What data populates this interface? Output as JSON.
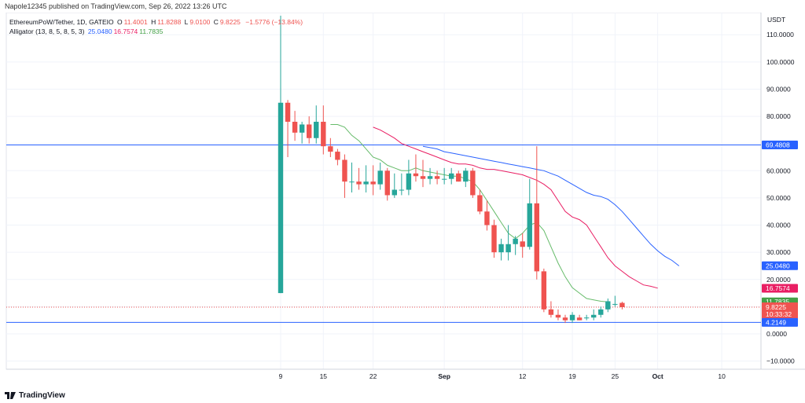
{
  "header": {
    "published_text": "Napole12345 published on TradingView.com, Sep 26, 2022 13:26 UTC"
  },
  "legend": {
    "symbol": "EthereumPoW/Tether, 1D, GATEIO",
    "ohlc": [
      {
        "k": "O",
        "v": "11.4001"
      },
      {
        "k": "H",
        "v": "11.8288"
      },
      {
        "k": "L",
        "v": "9.0100"
      },
      {
        "k": "C",
        "v": "9.8225"
      }
    ],
    "change": "−1.5776 (−13.84%)",
    "alligator_label": "Alligator (13, 8, 5, 8, 5, 3)",
    "alligator_values": [
      {
        "v": "25.0480",
        "color": "#2962ff"
      },
      {
        "v": "16.7574",
        "color": "#e91e63"
      },
      {
        "v": "11.7835",
        "color": "#43a047"
      }
    ]
  },
  "footer": {
    "brand": "TradingView"
  },
  "colors": {
    "up": "#26a69a",
    "down": "#ef5350",
    "jaw": "#2962ff",
    "teeth": "#e91e63",
    "lips": "#66bb6a",
    "hline": "#2962ff",
    "grid": "#f0f3fa"
  },
  "chart_data": {
    "type": "candlestick",
    "currency": "USDT",
    "ylim": [
      -13,
      117
    ],
    "y_ticks": [
      "110.0000",
      "100.0000",
      "90.0000",
      "80.0000",
      "70.0000",
      "60.0000",
      "50.0000",
      "40.0000",
      "30.0000",
      "20.0000",
      "10.0000",
      "0.0000",
      "−10.0000"
    ],
    "x_ticks": [
      {
        "label": "9",
        "i": 0
      },
      {
        "label": "15",
        "i": 6
      },
      {
        "label": "22",
        "i": 13
      },
      {
        "label": "Sep",
        "i": 23,
        "bold": true
      },
      {
        "label": "12",
        "i": 34
      },
      {
        "label": "19",
        "i": 41
      },
      {
        "label": "25",
        "i": 47
      },
      {
        "label": "Oct",
        "i": 53,
        "bold": true
      },
      {
        "label": "10",
        "i": 62
      }
    ],
    "candles": [
      {
        "o": 15,
        "h": 117,
        "l": 15,
        "c": 85
      },
      {
        "o": 85,
        "h": 86,
        "l": 65,
        "c": 78
      },
      {
        "o": 78,
        "h": 82,
        "l": 71,
        "c": 74
      },
      {
        "o": 74,
        "h": 78,
        "l": 70,
        "c": 77
      },
      {
        "o": 77,
        "h": 80,
        "l": 70,
        "c": 72
      },
      {
        "o": 72,
        "h": 84,
        "l": 70,
        "c": 78
      },
      {
        "o": 78,
        "h": 84,
        "l": 66,
        "c": 69
      },
      {
        "o": 69,
        "h": 72,
        "l": 65,
        "c": 67
      },
      {
        "o": 67,
        "h": 68,
        "l": 62,
        "c": 64
      },
      {
        "o": 64,
        "h": 66,
        "l": 50,
        "c": 56
      },
      {
        "o": 56,
        "h": 63,
        "l": 52,
        "c": 56
      },
      {
        "o": 56,
        "h": 61,
        "l": 53,
        "c": 55
      },
      {
        "o": 55,
        "h": 62,
        "l": 52,
        "c": 56
      },
      {
        "o": 56,
        "h": 62,
        "l": 51,
        "c": 55
      },
      {
        "o": 55,
        "h": 63,
        "l": 53,
        "c": 60
      },
      {
        "o": 60,
        "h": 61,
        "l": 49,
        "c": 51
      },
      {
        "o": 51,
        "h": 59,
        "l": 50,
        "c": 53
      },
      {
        "o": 53,
        "h": 59,
        "l": 51,
        "c": 53
      },
      {
        "o": 53,
        "h": 64,
        "l": 51,
        "c": 59
      },
      {
        "o": 59,
        "h": 66,
        "l": 56,
        "c": 58
      },
      {
        "o": 58,
        "h": 64,
        "l": 54,
        "c": 57
      },
      {
        "o": 57,
        "h": 61,
        "l": 55,
        "c": 58
      },
      {
        "o": 58,
        "h": 60,
        "l": 55,
        "c": 57
      },
      {
        "o": 57,
        "h": 61,
        "l": 55,
        "c": 57
      },
      {
        "o": 57,
        "h": 61,
        "l": 55,
        "c": 59
      },
      {
        "o": 59,
        "h": 60,
        "l": 56,
        "c": 56
      },
      {
        "o": 56,
        "h": 61,
        "l": 54,
        "c": 60
      },
      {
        "o": 60,
        "h": 61,
        "l": 50,
        "c": 51
      },
      {
        "o": 51,
        "h": 53,
        "l": 44,
        "c": 45
      },
      {
        "o": 45,
        "h": 49,
        "l": 38,
        "c": 40
      },
      {
        "o": 40,
        "h": 42,
        "l": 28,
        "c": 30
      },
      {
        "o": 30,
        "h": 35,
        "l": 27,
        "c": 33
      },
      {
        "o": 30,
        "h": 40,
        "l": 27,
        "c": 33
      },
      {
        "o": 33,
        "h": 36,
        "l": 29,
        "c": 35
      },
      {
        "o": 34,
        "h": 37,
        "l": 28,
        "c": 32
      },
      {
        "o": 32,
        "h": 57,
        "l": 31,
        "c": 48
      },
      {
        "o": 48,
        "h": 69,
        "l": 20,
        "c": 23
      },
      {
        "o": 23,
        "h": 24,
        "l": 8,
        "c": 9
      },
      {
        "o": 9,
        "h": 12,
        "l": 6,
        "c": 7
      },
      {
        "o": 7,
        "h": 9,
        "l": 5,
        "c": 6
      },
      {
        "o": 6,
        "h": 7,
        "l": 4,
        "c": 5
      },
      {
        "o": 5,
        "h": 8,
        "l": 4,
        "c": 7
      },
      {
        "o": 6,
        "h": 7,
        "l": 5,
        "c": 5
      },
      {
        "o": 6,
        "h": 7,
        "l": 5,
        "c": 6
      },
      {
        "o": 6,
        "h": 9,
        "l": 5,
        "c": 7
      },
      {
        "o": 7,
        "h": 10,
        "l": 6,
        "c": 9
      },
      {
        "o": 9,
        "h": 13,
        "l": 8,
        "c": 12
      },
      {
        "o": 11,
        "h": 14,
        "l": 10,
        "c": 11
      },
      {
        "o": 11.4,
        "h": 11.83,
        "l": 9.01,
        "c": 9.82
      }
    ],
    "alligator": {
      "jaw": {
        "name": "25.0480",
        "start_i": 20,
        "values": [
          69,
          68.5,
          68,
          67,
          66.5,
          66,
          65.5,
          65,
          64.5,
          64,
          63.5,
          63,
          62.5,
          62,
          61.5,
          61,
          60.5,
          60,
          59,
          58,
          56.5,
          55,
          53.5,
          52,
          51,
          50.5,
          49.5,
          47.5,
          45,
          42,
          39,
          36,
          33,
          30.5,
          28.5,
          27,
          25
        ]
      },
      "teeth": {
        "name": "16.7574",
        "start_i": 13,
        "values": [
          76,
          75,
          73.5,
          72,
          70,
          69,
          68,
          67,
          66,
          65,
          64,
          63,
          62.5,
          62.5,
          62,
          61,
          60.5,
          60.5,
          60,
          59.5,
          59,
          58.5,
          57.5,
          56.5,
          55,
          53,
          49,
          45,
          43,
          42,
          40,
          36,
          32,
          28,
          25,
          23,
          21,
          19.5,
          18,
          17.5,
          16.8
        ]
      },
      "lips": {
        "name": "11.7835",
        "start_i": 7,
        "values": [
          77,
          77,
          76,
          73,
          71,
          68,
          65,
          64,
          62,
          61,
          60,
          60,
          61,
          60,
          59.5,
          59,
          58.5,
          58,
          58,
          57,
          56,
          53,
          49,
          45,
          41,
          37,
          35,
          37,
          40,
          41,
          38,
          32,
          26,
          21,
          17,
          15,
          13,
          12.5,
          12,
          11.8
        ]
      }
    },
    "hlines": [
      {
        "label": "69.4808",
        "value": 69.48
      },
      {
        "label": "4.2149",
        "value": 4.2149
      }
    ],
    "current_price": {
      "label": "9.8225",
      "countdown": "10:33:32",
      "value": 9.82
    },
    "price_tags": [
      {
        "label": "25.0480",
        "value": 25.048,
        "color": "#2962ff"
      },
      {
        "label": "16.7574",
        "value": 16.757,
        "color": "#e91e63"
      },
      {
        "label": "11.7835",
        "value": 11.783,
        "color": "#43a047"
      }
    ]
  }
}
